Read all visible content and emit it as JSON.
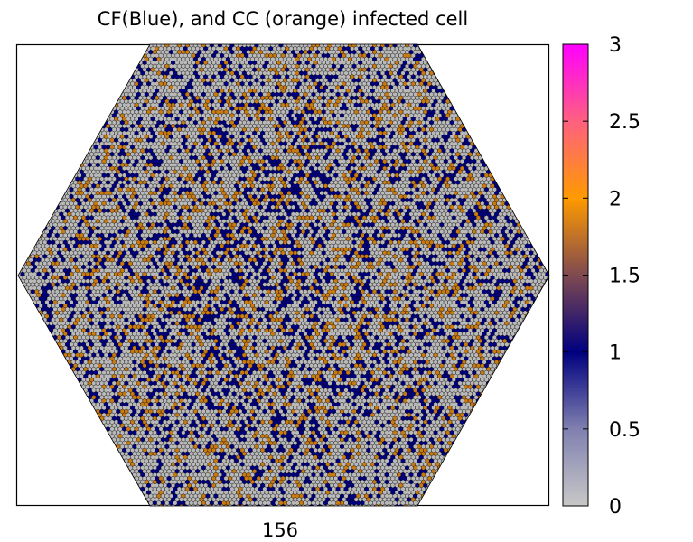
{
  "chart_data": {
    "type": "heatmap",
    "title": "CF(Blue), and CC (orange) infected cell",
    "xlabel": "156",
    "shape": "hexagon",
    "cell_shape": "hexagon",
    "colorbar": {
      "min": 0,
      "max": 3,
      "tick_labels": [
        "0",
        "0.5",
        "1",
        "1.5",
        "2",
        "2.5",
        "3"
      ],
      "tick_values": [
        0,
        0.5,
        1,
        1.5,
        2,
        2.5,
        3
      ],
      "gradient": [
        {
          "value": 0,
          "color": "#c8c8c8"
        },
        {
          "value": 0.5,
          "color": "#8080b0"
        },
        {
          "value": 1,
          "color": "#000080"
        },
        {
          "value": 1.5,
          "color": "#804a50"
        },
        {
          "value": 2,
          "color": "#ff9a00"
        },
        {
          "value": 2.5,
          "color": "#ff6080"
        },
        {
          "value": 3,
          "color": "#ff00ff"
        }
      ]
    },
    "state_distribution": [
      {
        "value": 0,
        "color": "#b9b9b9",
        "share": 0.55
      },
      {
        "value": 1,
        "color": "#000080",
        "share": 0.27
      },
      {
        "value": 2,
        "color": "#c87a10",
        "share": 0.18
      }
    ],
    "cell_outline_color": "#000000"
  }
}
